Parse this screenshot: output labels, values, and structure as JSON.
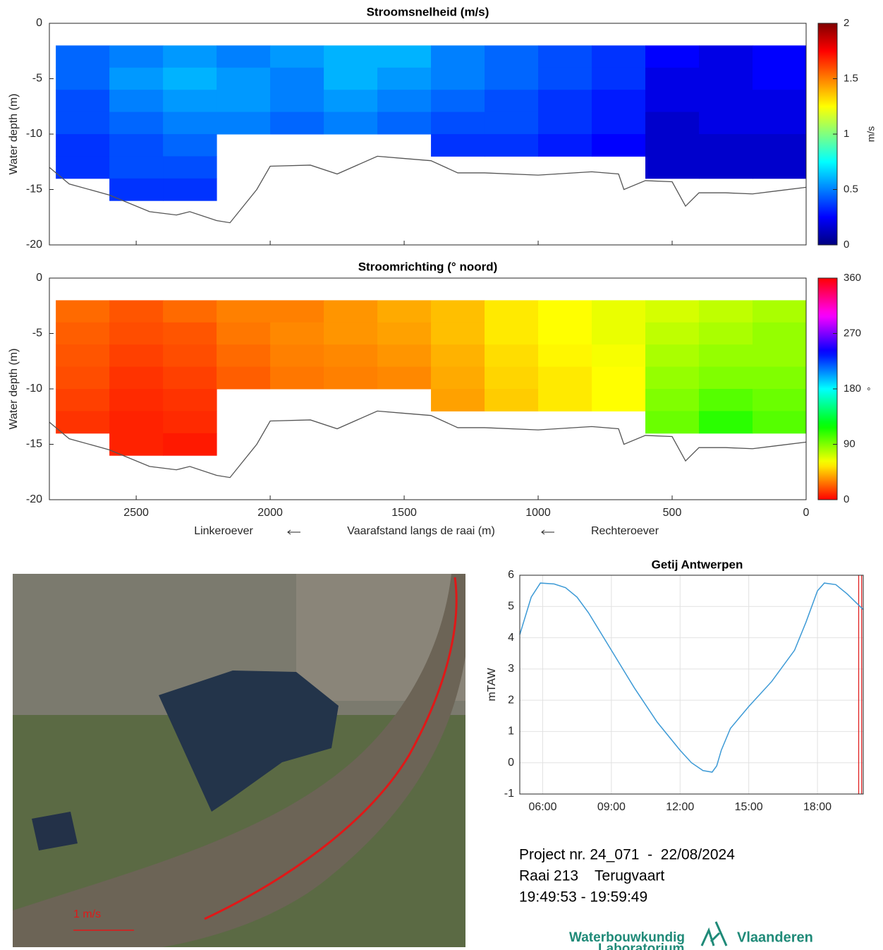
{
  "chart_data": [
    {
      "type": "heatmap",
      "title": "Stroomsnelheid (m/s)",
      "ylabel": "Water depth (m)",
      "xlim": [
        2824,
        0
      ],
      "xticks": [
        2500,
        2000,
        1500,
        1000,
        500,
        0
      ],
      "show_xtick_labels": false,
      "ylim": [
        -20,
        0
      ],
      "yticks": [
        0,
        -5,
        -10,
        -15,
        -20
      ],
      "x_edges": [
        2800,
        2600,
        2400,
        2200,
        2000,
        1800,
        1600,
        1400,
        1200,
        1000,
        800,
        600,
        400,
        200,
        0
      ],
      "depth_edges": [
        -2,
        -4,
        -6,
        -8,
        -10,
        -12,
        -14,
        -16
      ],
      "values": [
        [
          0.45,
          0.5,
          0.55,
          0.5,
          0.55,
          0.6,
          0.6,
          0.5,
          0.45,
          0.4,
          0.35,
          0.25,
          0.2,
          0.25
        ],
        [
          0.45,
          0.55,
          0.6,
          0.55,
          0.5,
          0.6,
          0.55,
          0.5,
          0.45,
          0.4,
          0.35,
          0.2,
          0.2,
          0.25
        ],
        [
          0.4,
          0.5,
          0.55,
          0.55,
          0.5,
          0.55,
          0.5,
          0.45,
          0.4,
          0.35,
          0.3,
          0.2,
          0.2,
          0.2
        ],
        [
          0.4,
          0.45,
          0.5,
          0.5,
          0.45,
          0.5,
          0.45,
          0.4,
          0.4,
          0.35,
          0.3,
          0.15,
          0.2,
          0.2
        ],
        [
          0.35,
          0.4,
          0.45,
          null,
          null,
          null,
          null,
          0.35,
          0.35,
          0.3,
          0.25,
          0.15,
          0.15,
          0.15
        ],
        [
          0.35,
          0.4,
          0.4,
          null,
          null,
          null,
          null,
          null,
          null,
          null,
          null,
          0.15,
          0.15,
          0.15
        ],
        [
          null,
          0.35,
          0.35,
          null,
          null,
          null,
          null,
          null,
          null,
          null,
          null,
          null,
          null,
          null
        ]
      ],
      "colormap": "jet",
      "clim": [
        0,
        2
      ],
      "cticks": [
        0,
        0.5,
        1,
        1.5,
        2
      ],
      "clabel": "m/s",
      "bed_x": [
        2824,
        2750,
        2600,
        2450,
        2350,
        2300,
        2200,
        2150,
        2050,
        2000,
        1850,
        1750,
        1600,
        1500,
        1400,
        1300,
        1200,
        1000,
        800,
        700,
        680,
        600,
        500,
        450,
        400,
        300,
        200,
        100,
        0
      ],
      "bed_y": [
        -13,
        -14.5,
        -15.5,
        -17,
        -17.3,
        -17,
        -17.8,
        -18,
        -15,
        -12.9,
        -12.8,
        -13.6,
        -12,
        -12.2,
        -12.4,
        -13.5,
        -13.5,
        -13.7,
        -13.4,
        -13.6,
        -15,
        -14.2,
        -14.3,
        -16.5,
        -15.3,
        -15.3,
        -15.4,
        -15.1,
        -14.8
      ],
      "bed_color": "#555555"
    },
    {
      "type": "heatmap",
      "title": "Stroomrichting (° noord)",
      "ylabel": "Water depth (m)",
      "xlabel": "Vaarafstand langs de raai (m)",
      "xlabel_left": "Linkeroever",
      "xlabel_right": "Rechteroever",
      "xlim": [
        2824,
        0
      ],
      "xticks": [
        2500,
        2000,
        1500,
        1000,
        500,
        0
      ],
      "show_xtick_labels": true,
      "ylim": [
        -20,
        0
      ],
      "yticks": [
        0,
        -5,
        -10,
        -15,
        -20
      ],
      "x_edges": [
        2800,
        2600,
        2400,
        2200,
        2000,
        1800,
        1600,
        1400,
        1200,
        1000,
        800,
        600,
        400,
        200,
        0
      ],
      "depth_edges": [
        -2,
        -4,
        -6,
        -8,
        -10,
        -12,
        -14,
        -16
      ],
      "values": [
        [
          25,
          20,
          25,
          30,
          30,
          35,
          40,
          45,
          55,
          60,
          65,
          70,
          75,
          80
        ],
        [
          22,
          18,
          20,
          28,
          32,
          35,
          38,
          45,
          55,
          60,
          65,
          75,
          80,
          85
        ],
        [
          20,
          15,
          18,
          25,
          30,
          32,
          35,
          42,
          52,
          58,
          62,
          80,
          85,
          85
        ],
        [
          18,
          12,
          15,
          22,
          28,
          30,
          32,
          40,
          50,
          55,
          60,
          85,
          90,
          90
        ],
        [
          15,
          10,
          12,
          null,
          null,
          null,
          null,
          38,
          48,
          55,
          60,
          90,
          100,
          95
        ],
        [
          12,
          8,
          10,
          null,
          null,
          null,
          null,
          null,
          null,
          null,
          null,
          95,
          110,
          100
        ],
        [
          null,
          8,
          6,
          null,
          null,
          null,
          null,
          null,
          null,
          null,
          null,
          null,
          null,
          null
        ]
      ],
      "colormap": "hsv",
      "clim": [
        0,
        360
      ],
      "cticks": [
        0,
        90,
        180,
        270,
        360
      ],
      "clabel": "°",
      "bed_x": [
        2824,
        2750,
        2600,
        2450,
        2350,
        2300,
        2200,
        2150,
        2050,
        2000,
        1850,
        1750,
        1600,
        1500,
        1400,
        1300,
        1200,
        1000,
        800,
        700,
        680,
        600,
        500,
        450,
        400,
        300,
        200,
        100,
        0
      ],
      "bed_y": [
        -13,
        -14.5,
        -15.5,
        -17,
        -17.3,
        -17,
        -17.8,
        -18,
        -15,
        -12.9,
        -12.8,
        -13.6,
        -12,
        -12.2,
        -12.4,
        -13.5,
        -13.5,
        -13.7,
        -13.4,
        -13.6,
        -15,
        -14.2,
        -14.3,
        -16.5,
        -15.3,
        -15.3,
        -15.4,
        -15.1,
        -14.8
      ],
      "bed_color": "#555555"
    },
    {
      "type": "line",
      "title": "Getij Antwerpen",
      "ylabel": "mTAW",
      "grid": true,
      "color": "#3d9ad6",
      "xlim": [
        5,
        20
      ],
      "xticks": [
        {
          "value": 6,
          "label": "06:00"
        },
        {
          "value": 9,
          "label": "09:00"
        },
        {
          "value": 12,
          "label": "12:00"
        },
        {
          "value": 15,
          "label": "15:00"
        },
        {
          "value": 18,
          "label": "18:00"
        }
      ],
      "ylim": [
        -1,
        6
      ],
      "yticks": [
        -1,
        0,
        1,
        2,
        3,
        4,
        5,
        6
      ],
      "x": [
        5,
        5.5,
        5.9,
        6.5,
        7,
        7.5,
        8,
        9,
        10,
        11,
        12,
        12.5,
        13,
        13.4,
        13.6,
        13.8,
        14.2,
        15,
        16,
        17,
        17.5,
        18,
        18.3,
        18.8,
        19.3,
        20
      ],
      "values": [
        4.1,
        5.3,
        5.75,
        5.72,
        5.6,
        5.3,
        4.8,
        3.6,
        2.4,
        1.3,
        0.4,
        0,
        -0.25,
        -0.3,
        -0.1,
        0.4,
        1.1,
        1.8,
        2.6,
        3.6,
        4.5,
        5.5,
        5.75,
        5.7,
        5.4,
        4.9
      ],
      "highlight_x": [
        19.8,
        19.93
      ],
      "highlight_color": "#e02020"
    }
  ],
  "map": {
    "scale_label": "1 m/s"
  },
  "info": {
    "lines": [
      "Project nr. 24_071  -  22/08/2024",
      "Raai 213    Terugvaart",
      "19:49:53 - 19:59:49"
    ]
  },
  "logo": {
    "left": "Waterbouwkundig",
    "left2": "Laboratorium",
    "right": "Vlaanderen"
  }
}
